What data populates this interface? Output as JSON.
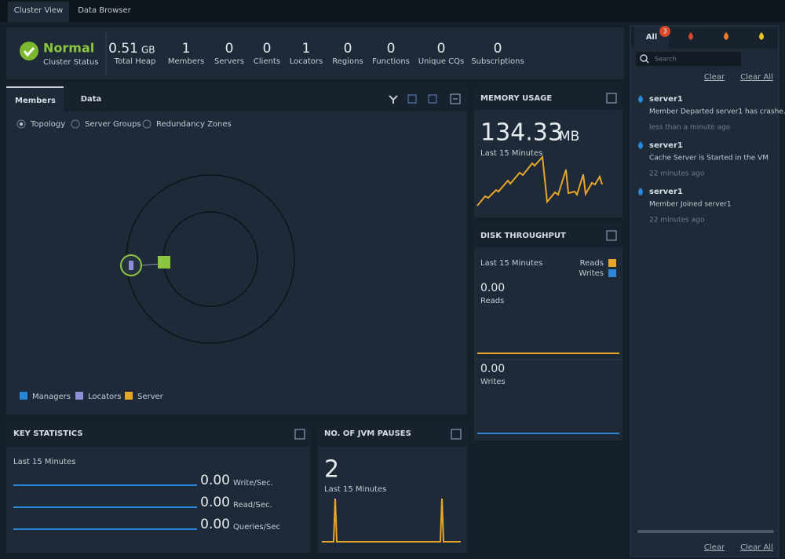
{
  "tabs": [
    "Cluster View",
    "Data Browser"
  ],
  "status": {
    "label": "Normal",
    "caption": "Cluster Status"
  },
  "stats": [
    {
      "value": 0.51,
      "unit": "GB",
      "label": "Total Heap"
    },
    {
      "value": 1,
      "label": "Members"
    },
    {
      "value": 0,
      "label": "Servers"
    },
    {
      "value": 0,
      "label": "Clients"
    },
    {
      "value": 1,
      "label": "Locators"
    },
    {
      "value": 0,
      "label": "Regions"
    },
    {
      "value": 0,
      "label": "Functions"
    },
    {
      "value": 0,
      "label": "Unique CQs"
    },
    {
      "value": 0,
      "label": "Subscriptions"
    }
  ],
  "members_panel": {
    "tabs": [
      "Members",
      "Data"
    ],
    "views": [
      "Topology",
      "Server Groups",
      "Redundancy Zones"
    ],
    "legend": [
      "Managers",
      "Locators",
      "Server"
    ]
  },
  "memory_usage": {
    "title": "MEMORY USAGE",
    "value": 134.33,
    "unit": "MB",
    "period": "Last 15 Minutes"
  },
  "disk_throughput": {
    "title": "DISK THROUGHPUT",
    "period": "Last 15 Minutes",
    "legend": [
      "Reads",
      "Writes"
    ],
    "reads": {
      "value": "0.00",
      "label": "Reads"
    },
    "writes": {
      "value": "0.00",
      "label": "Writes"
    }
  },
  "key_statistics": {
    "title": "KEY STATISTICS",
    "period": "Last 15 Minutes",
    "rows": [
      {
        "value": "0.00",
        "label": "Write/Sec."
      },
      {
        "value": "0.00",
        "label": "Read/Sec."
      },
      {
        "value": "0.00",
        "label": "Queries/Sec"
      }
    ]
  },
  "jvm_pauses": {
    "title": "NO. OF JVM PAUSES",
    "value": 2,
    "period": "Last 15 Minutes"
  },
  "notifications": {
    "tab": "All",
    "badge": 3,
    "search_placeholder": "Search",
    "clear": "Clear",
    "clear_all": "Clear All",
    "items": [
      {
        "member": "server1",
        "message": "Member Departed server1 has crashe...",
        "time": "less than a minute ago"
      },
      {
        "member": "server1",
        "message": "Cache Server is Started in the VM",
        "time": "22 minutes ago"
      },
      {
        "member": "server1",
        "message": "Member Joined server1",
        "time": "22 minutes ago"
      }
    ]
  }
}
